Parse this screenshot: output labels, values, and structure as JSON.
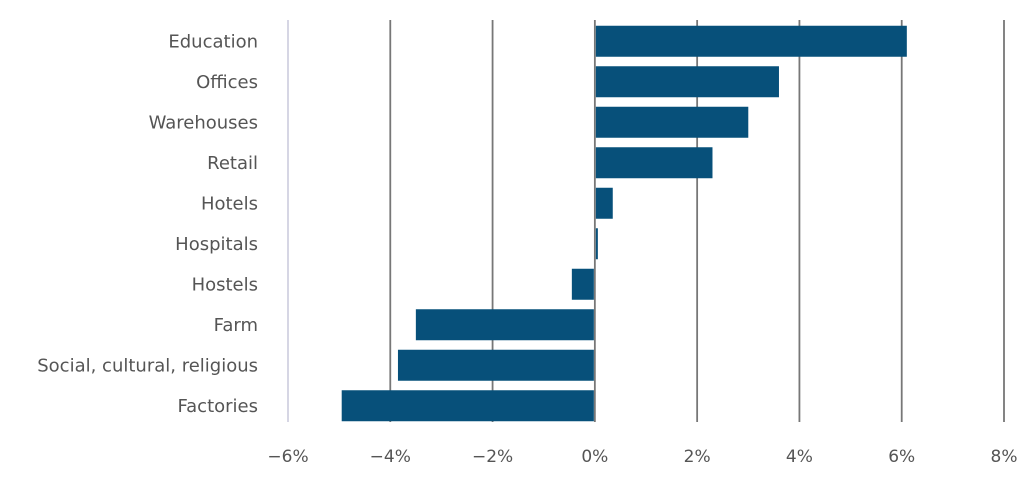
{
  "chart_data": {
    "type": "bar",
    "orientation": "horizontal",
    "categories": [
      "Education",
      "Offices",
      "Warehouses",
      "Retail",
      "Hotels",
      "Hospitals",
      "Hostels",
      "Farm",
      "Social, cultural, religious",
      "Factories"
    ],
    "values": [
      6.1,
      3.6,
      3.0,
      2.3,
      0.35,
      0.05,
      -0.45,
      -3.5,
      -3.85,
      -4.95
    ],
    "xlim": [
      -6,
      8
    ],
    "xticks": [
      -6,
      -4,
      -2,
      0,
      2,
      4,
      6,
      8
    ],
    "xtick_labels": [
      "−6%",
      "−4%",
      "−2%",
      "0%",
      "2%",
      "4%",
      "6%",
      "8%"
    ],
    "grid": "vertical",
    "legend": "none",
    "bar_color": "#07507a",
    "grid_color": "#777777",
    "axis_color": "#c8c8dc",
    "text_color": "#555555"
  }
}
